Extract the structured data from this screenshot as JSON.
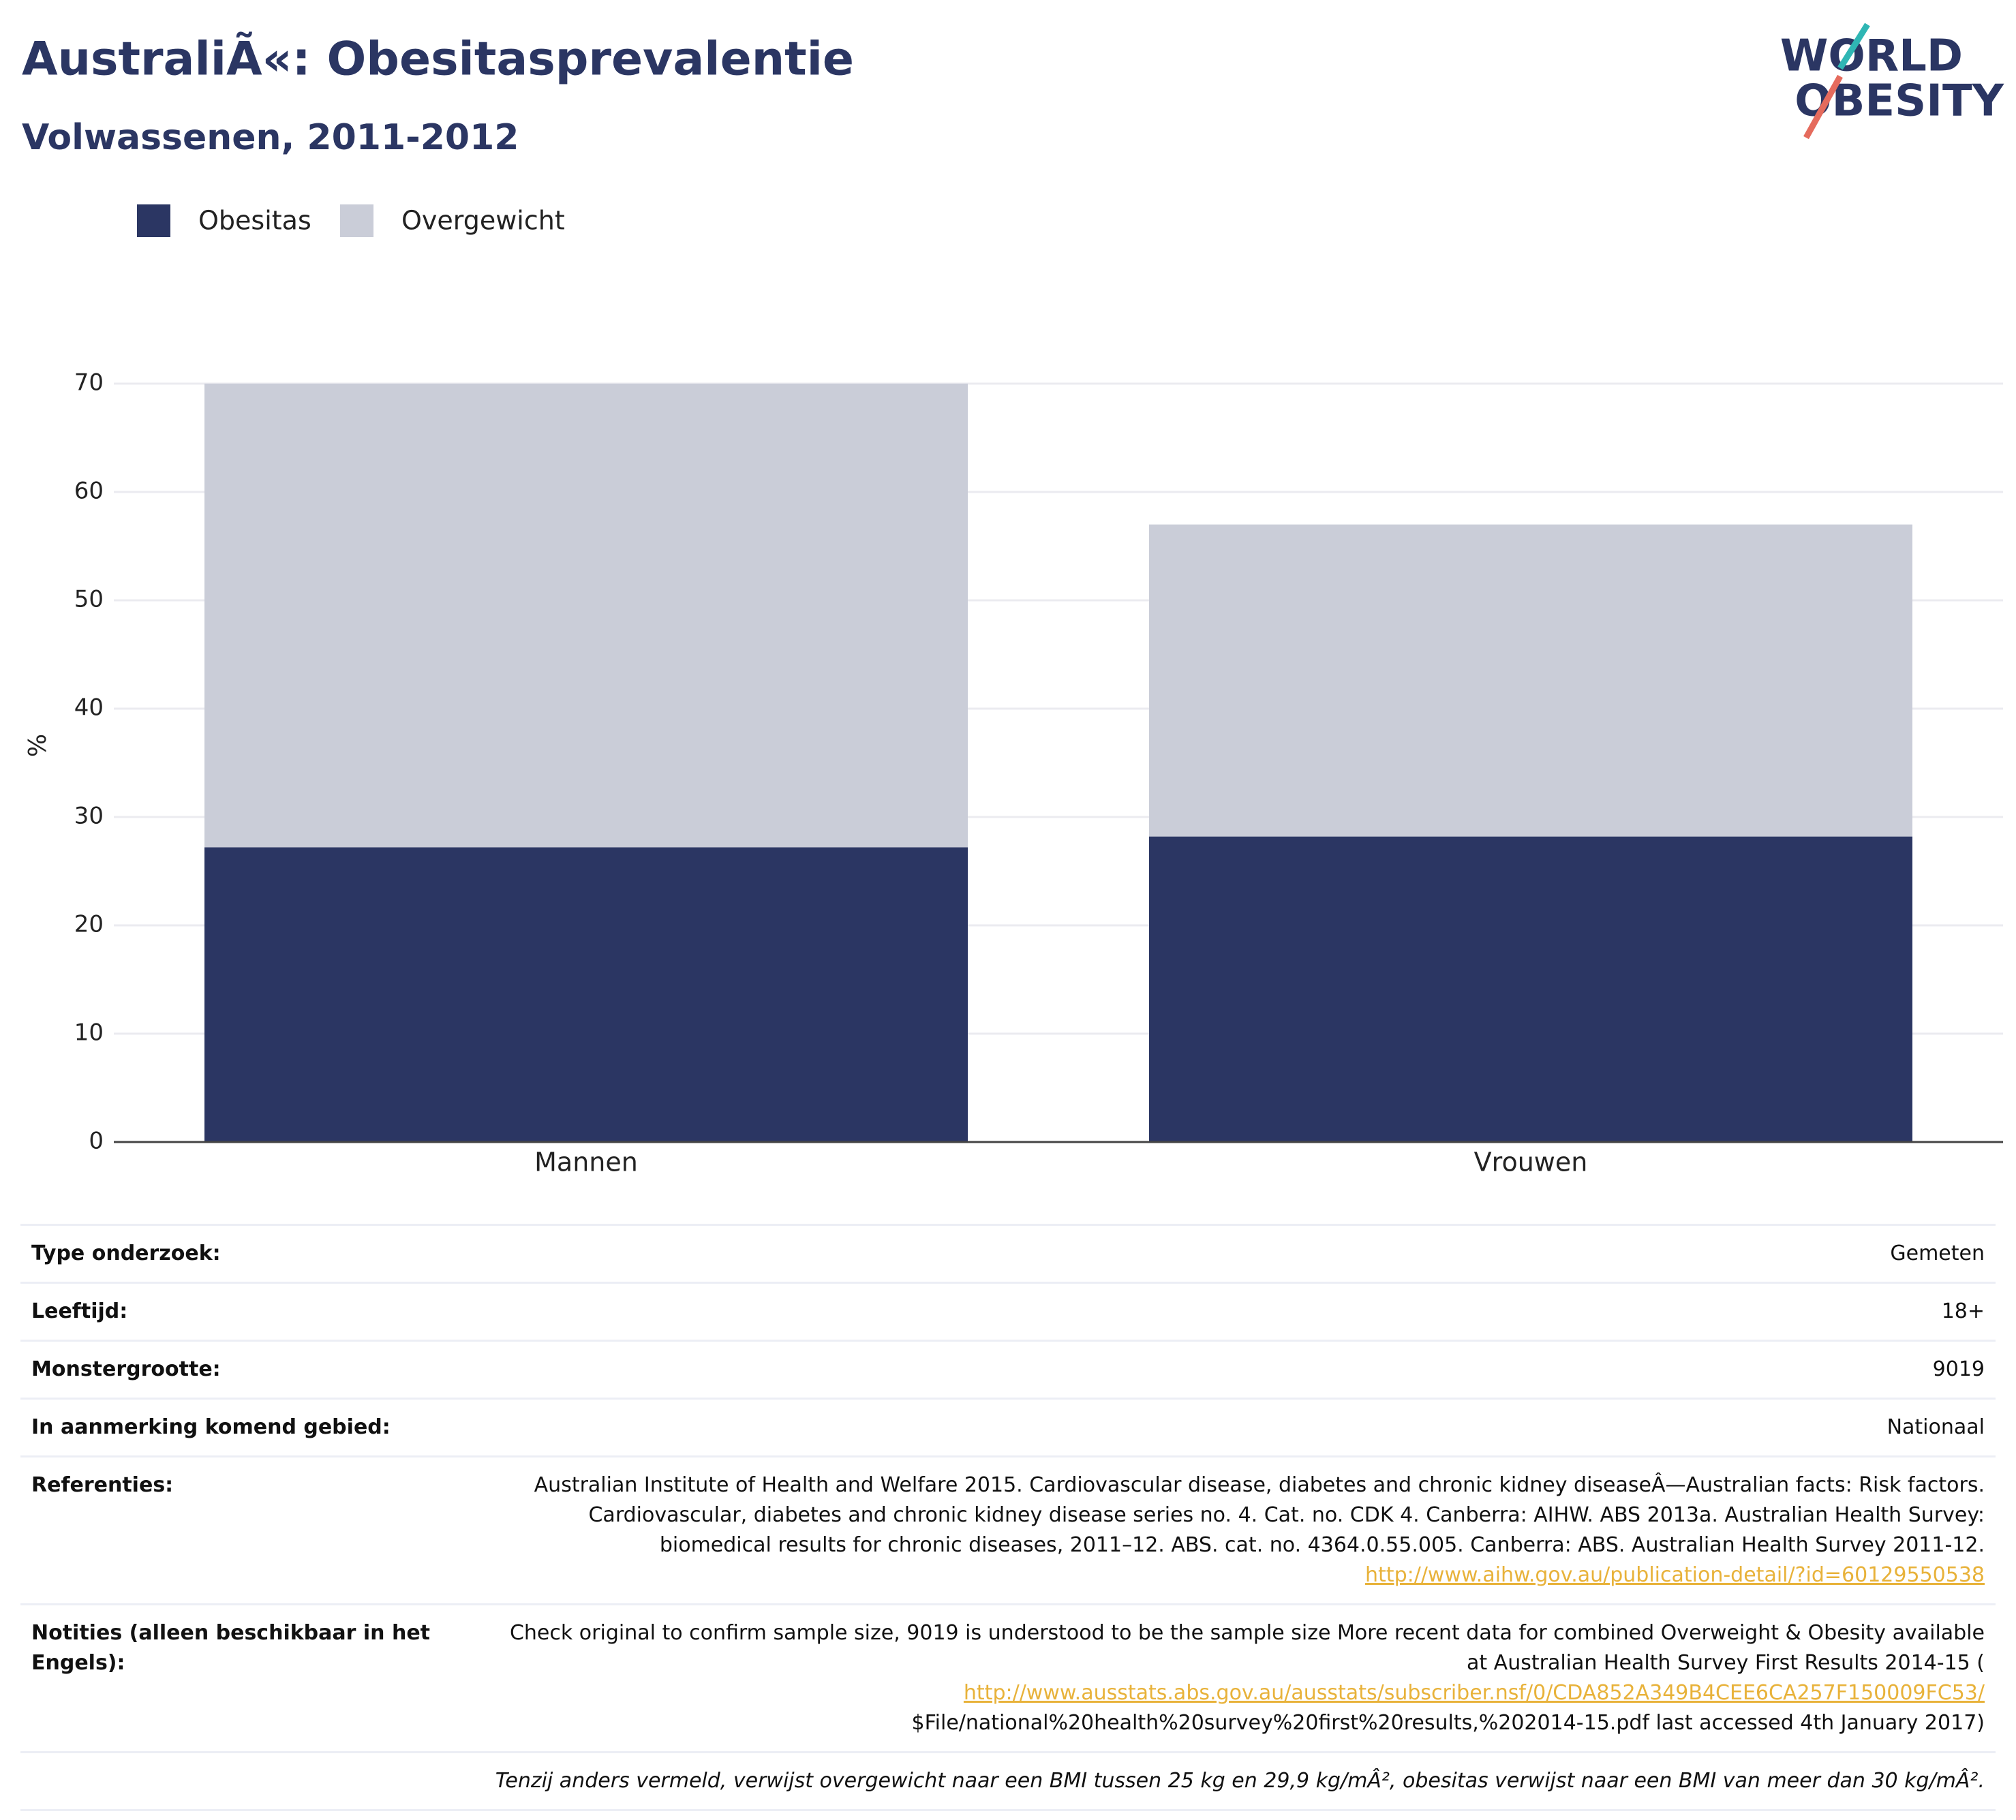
{
  "chart_data": {
    "type": "stacked_bar",
    "title": "AustraliÃ«: Obesitasprevalentie",
    "subtitle": "Volwassenen, 2011-2012",
    "logo": [
      "WORLD",
      "OBESITY"
    ],
    "y_label": "%",
    "categories": [
      "Mannen",
      "Vrouwen"
    ],
    "series": [
      {
        "name": "Obesitas",
        "color": "#2b3663",
        "values": [
          27.2,
          28.2
        ]
      },
      {
        "name": "Overgewicht",
        "color": "#cacdd8",
        "values": [
          42.8,
          28.8
        ]
      }
    ],
    "ylim": [
      0,
      70
    ],
    "yticks": [
      0,
      10,
      20,
      30,
      40,
      50,
      60,
      70
    ],
    "grid": true,
    "legend": "top-left"
  },
  "table": {
    "rows": [
      [
        "Type onderzoek:",
        "Gemeten"
      ],
      [
        "Leeftijd:",
        "18+"
      ],
      [
        "Monstergrootte:",
        "9019"
      ],
      [
        "In aanmerking komend gebied:",
        "Nationaal"
      ]
    ],
    "references": {
      "label": "Referenties:",
      "text": "Australian Institute of Health and Welfare 2015. Cardiovascular disease, diabetes and chronic kidney diseaseÂ—Australian facts: Risk factors. Cardiovascular, diabetes and chronic kidney disease series no. 4. Cat. no. CDK 4. Canberra: AIHW. ABS 2013a. Australian Health Survey: biomedical results for chronic diseases, 2011–12. ABS. cat. no. 4364.0.55.005. Canberra: ABS. Australian Health Survey 2011-12.",
      "link": "http://www.aihw.gov.au/publication-detail/?id=60129550538"
    },
    "notes": {
      "label": "Notities (alleen beschikbaar in het Engels):",
      "text": "Check original to confirm sample size, 9019 is understood to be the sample size More recent data for combined Overweight & Obesity available at Australian Health Survey First Results 2014-15 (",
      "link": "http://www.ausstats.abs.gov.au/ausstats/subscriber.nsf/0/CDA852A349B4CEE6CA257F150009FC53/",
      "after": "$File/national%20health%20survey%20first%20results,%202014-15.pdf last accessed 4th January 2017)"
    },
    "footnote": "Tenzij anders vermeld, verwijst overgewicht naar een BMI tussen 25 kg en 29,9 kg/mÂ², obesitas verwijst naar een BMI van meer dan 30 kg/mÂ²."
  }
}
